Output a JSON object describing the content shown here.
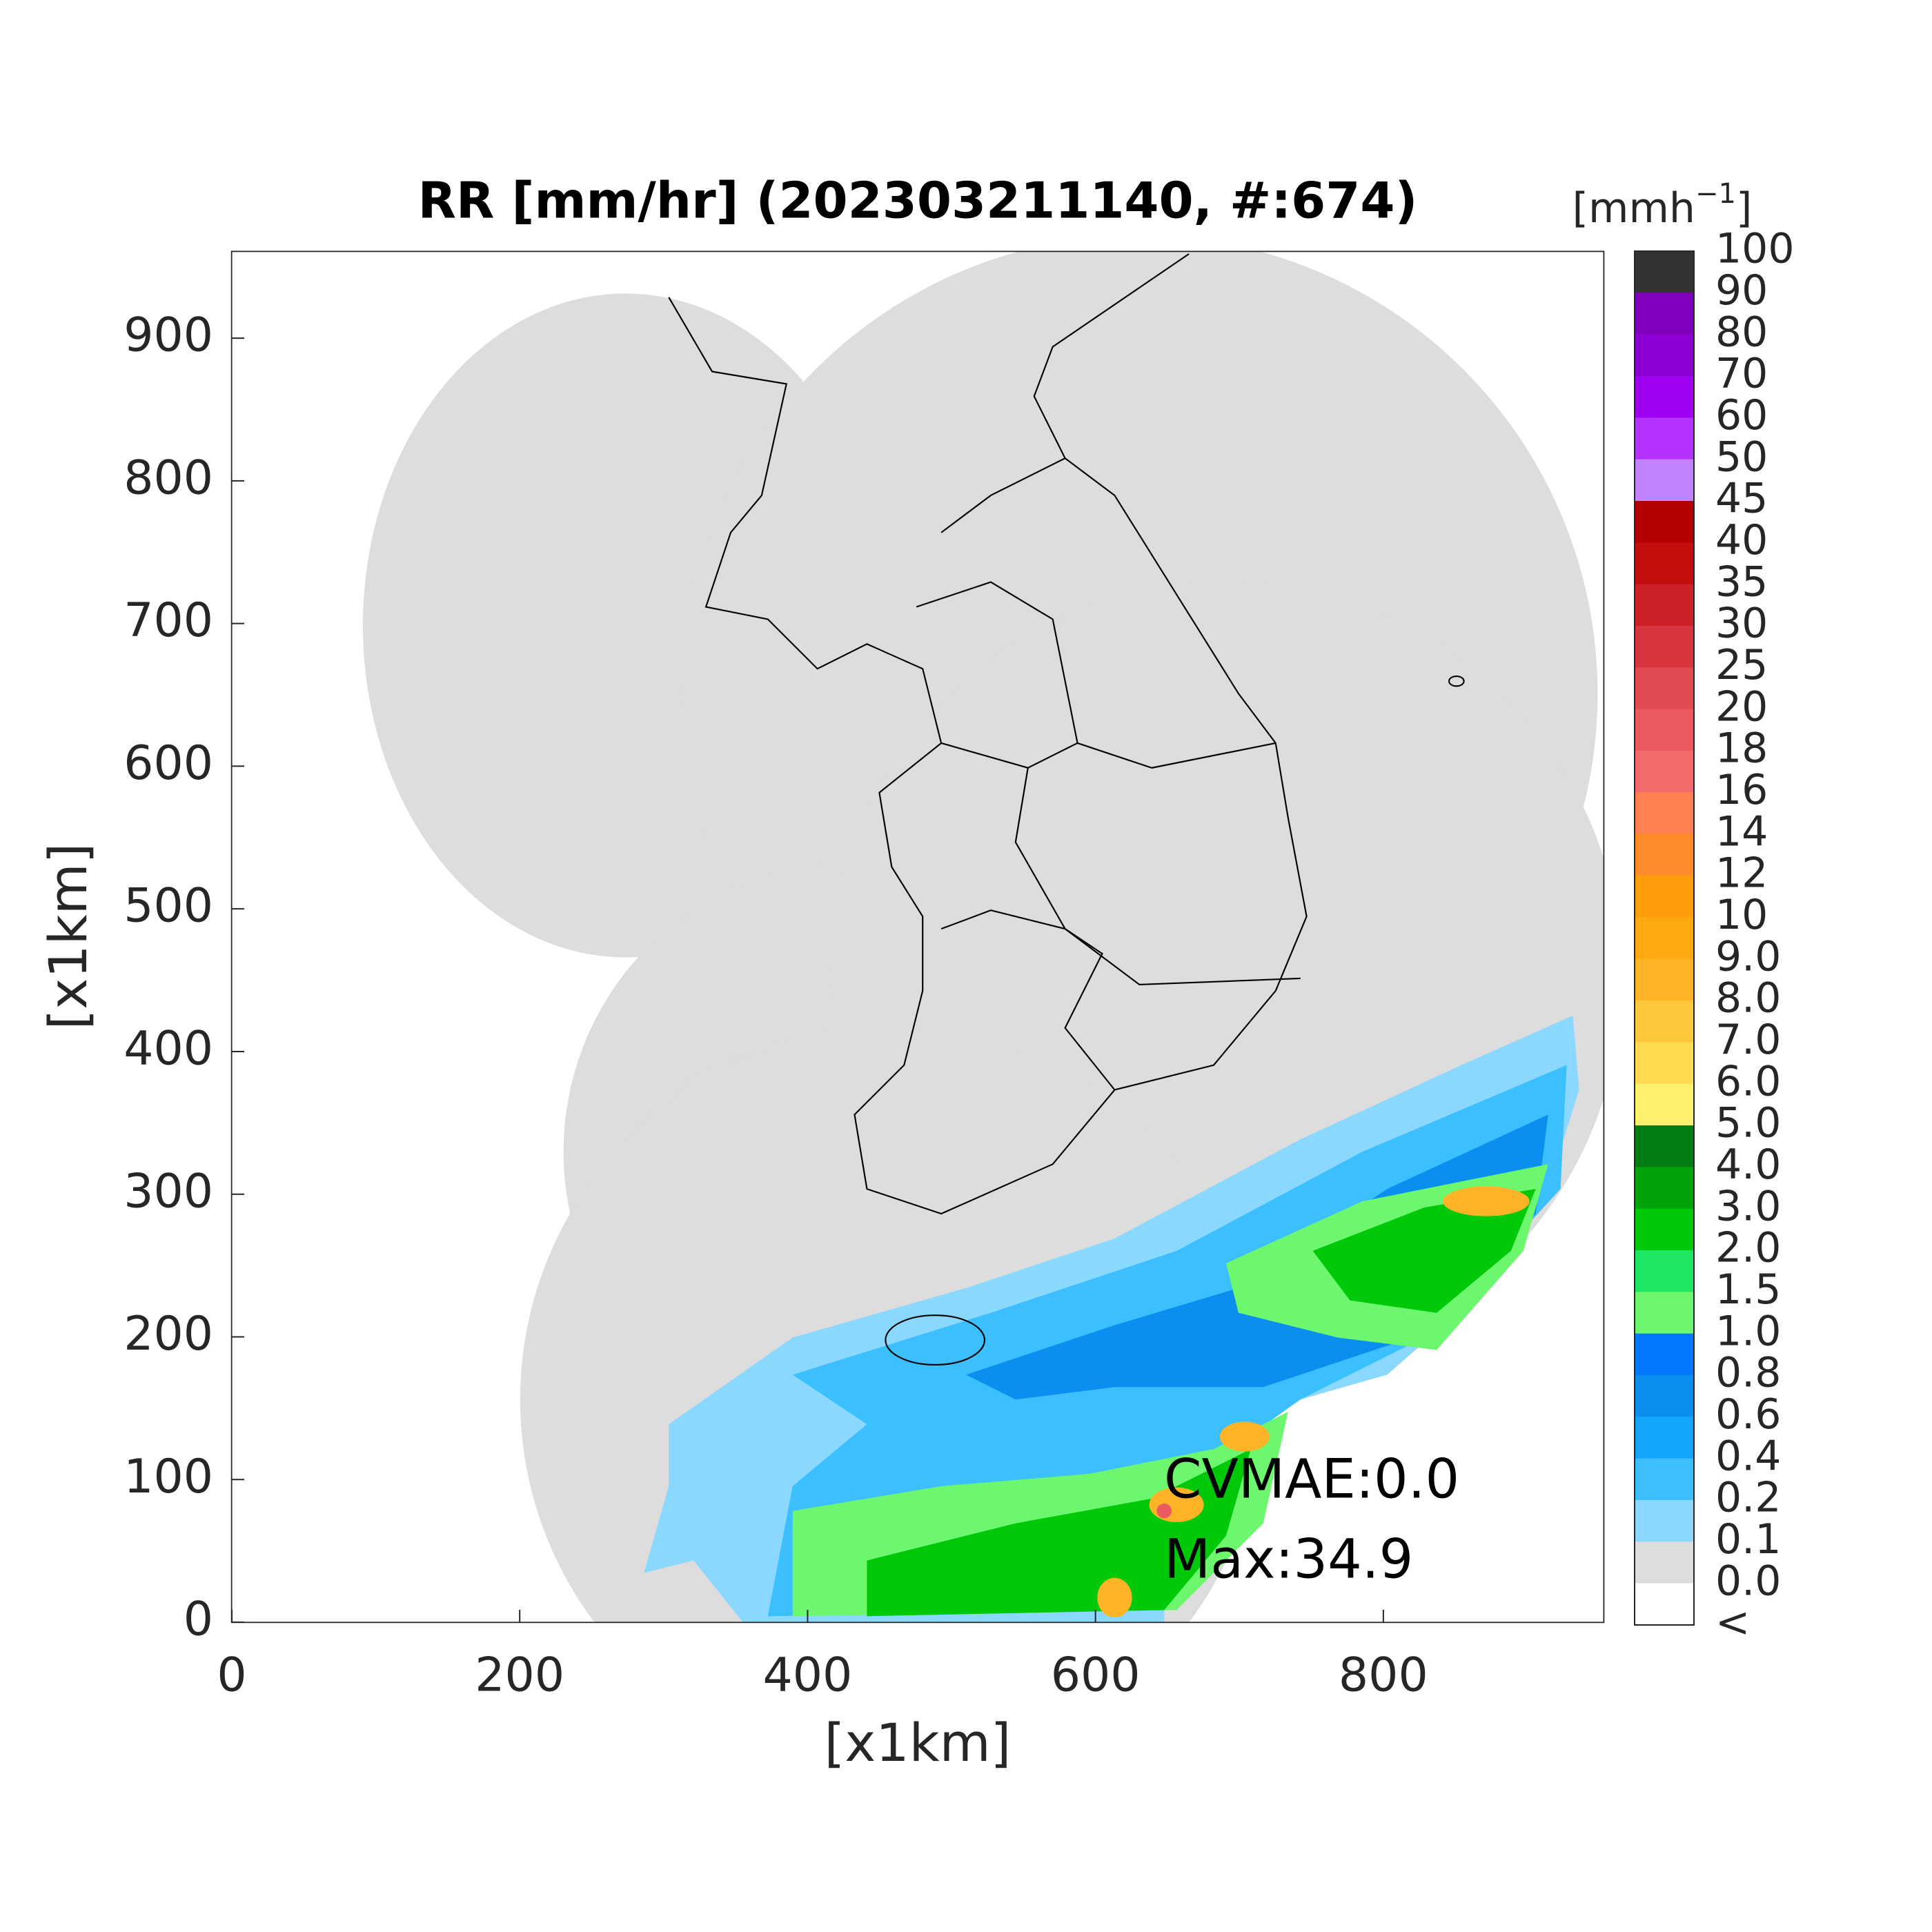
{
  "chart_data": {
    "type": "radar-map",
    "title": "RR [mm/hr] (202303211140, #:674)",
    "xlabel": "[x1km]",
    "ylabel": "[x1km]",
    "xlim": [
      0,
      953
    ],
    "ylim": [
      0,
      961
    ],
    "xticks": [
      0,
      200,
      400,
      600,
      800
    ],
    "yticks": [
      0,
      100,
      200,
      300,
      400,
      500,
      600,
      700,
      800,
      900
    ],
    "annotations": [
      "CVMAE:0.0",
      "Max:34.9"
    ],
    "colorbar": {
      "title_parts": [
        "[mmh",
        "−1",
        "]"
      ],
      "labels": [
        "100",
        "90",
        "80",
        "70",
        "60",
        "50",
        "45",
        "40",
        "35",
        "30",
        "25",
        "20",
        "18",
        "16",
        "14",
        "12",
        "10",
        "9.0",
        "8.0",
        "7.0",
        "6.0",
        "5.0",
        "4.0",
        "3.0",
        "2.0",
        "1.5",
        "1.0",
        "0.8",
        "0.6",
        "0.4",
        "0.2",
        "0.1",
        "0.0",
        "<"
      ],
      "colors": [
        "#333333",
        "#7f00bf",
        "#8c00d4",
        "#a000f0",
        "#b432ff",
        "#c383ff",
        "#b40000",
        "#c40d0d",
        "#cd2027",
        "#d7343e",
        "#e14a53",
        "#ec5a60",
        "#f46a6a",
        "#ff8050",
        "#ff8c28",
        "#ff9e0a",
        "#ffa80f",
        "#ffb428",
        "#ffc83c",
        "#ffdb50",
        "#fff06e",
        "#007e14",
        "#00a30a",
        "#00c90a",
        "#1ee664",
        "#6cf76e",
        "#0078ff",
        "#0a8ef0",
        "#12a6ff",
        "#3cbfff",
        "#8ad8ff",
        "#dddddd",
        "#ffffff"
      ]
    }
  }
}
